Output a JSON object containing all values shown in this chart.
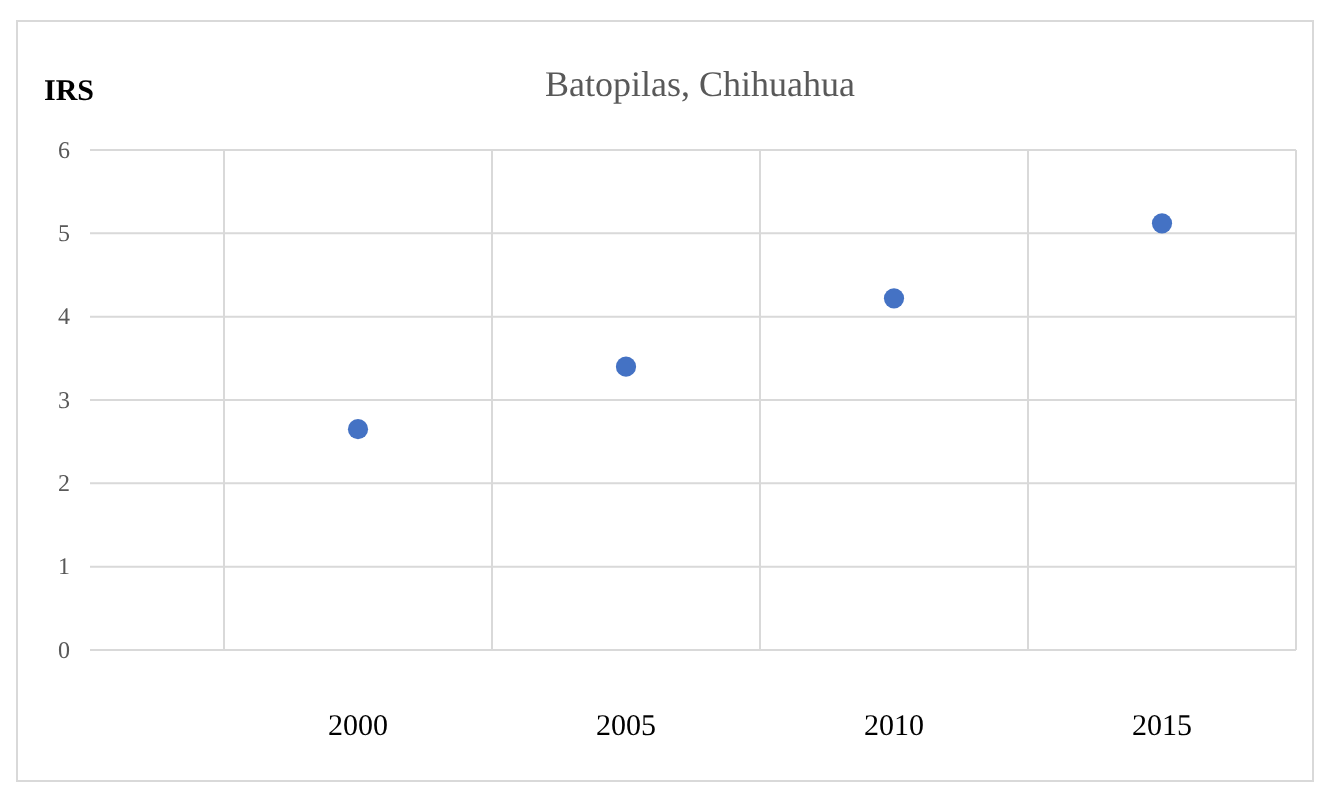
{
  "chart_data": {
    "type": "scatter",
    "title": "Batopilas,  Chihuahua",
    "ylabel": "IRS",
    "x": [
      2000,
      2005,
      2010,
      2015
    ],
    "series": [
      {
        "color": "#4472c4",
        "values": [
          2.65,
          3.4,
          4.22,
          5.12
        ]
      }
    ],
    "xlim": [
      1995,
      2017.5
    ],
    "xticks": [
      {
        "value": 1997.5,
        "label": null
      },
      2000,
      {
        "value": 2002.5,
        "label": null
      },
      2005,
      {
        "value": 2007.5,
        "label": null
      },
      2010,
      {
        "value": 2012.5,
        "label": null
      },
      2015,
      {
        "value": 2017.5,
        "label": null
      }
    ],
    "ylim": [
      0,
      6
    ],
    "yticks": [
      0,
      1,
      2,
      3,
      4,
      5,
      6
    ],
    "grid": true,
    "marker": "circle"
  }
}
